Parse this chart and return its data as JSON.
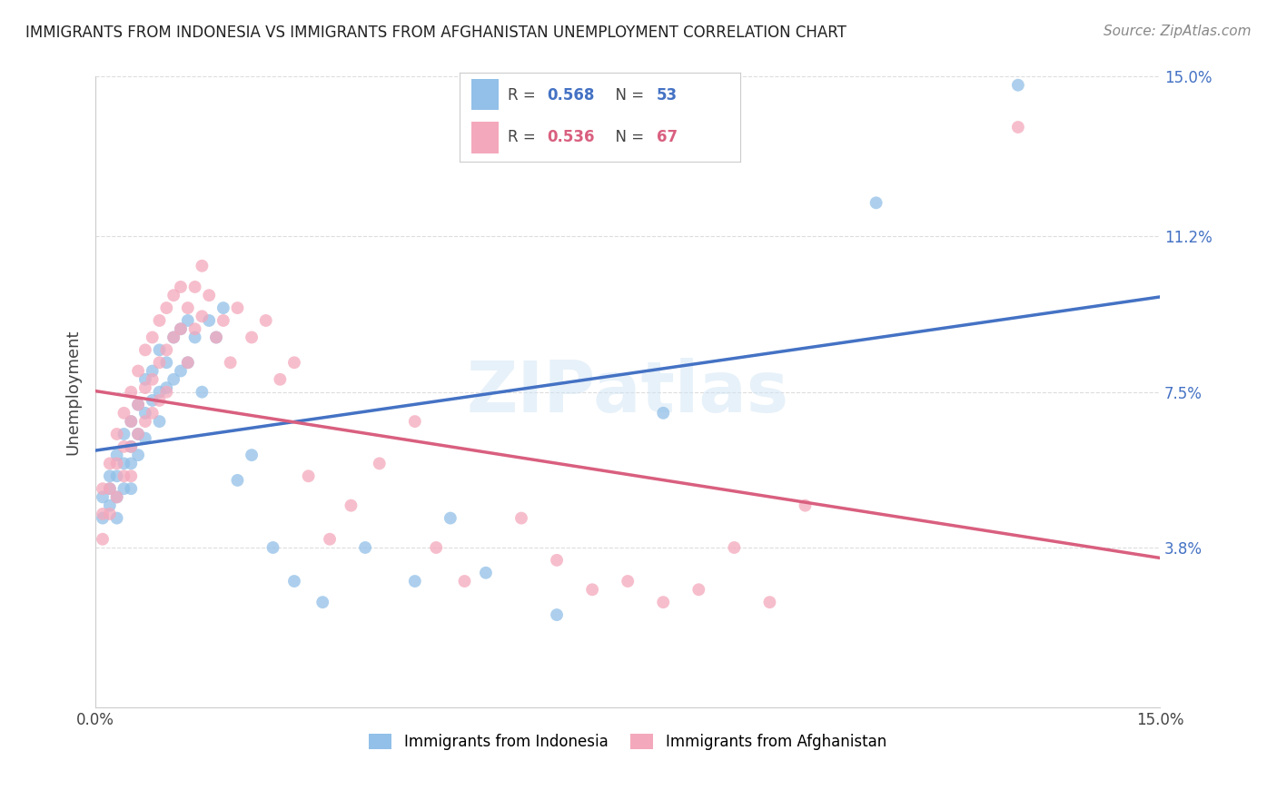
{
  "title": "IMMIGRANTS FROM INDONESIA VS IMMIGRANTS FROM AFGHANISTAN UNEMPLOYMENT CORRELATION CHART",
  "source": "Source: ZipAtlas.com",
  "ylabel": "Unemployment",
  "xlim": [
    0.0,
    0.15
  ],
  "ylim": [
    0.0,
    0.15
  ],
  "ytick_labels": [
    "3.8%",
    "7.5%",
    "11.2%",
    "15.0%"
  ],
  "ytick_positions": [
    0.038,
    0.075,
    0.112,
    0.15
  ],
  "xtick_positions": [
    0.0,
    0.025,
    0.05,
    0.075,
    0.1,
    0.125,
    0.15
  ],
  "indonesia_R": "0.568",
  "indonesia_N": "53",
  "afghanistan_R": "0.536",
  "afghanistan_N": "67",
  "indonesia_color": "#92C0E8",
  "afghanistan_color": "#F4A8BC",
  "indonesia_line_color": "#4472C4",
  "afghanistan_line_color": "#D95F7F",
  "watermark": "ZIPatlas",
  "background_color": "#FFFFFF",
  "grid_color": "#DDDDDD",
  "indonesia_x": [
    0.001,
    0.001,
    0.002,
    0.002,
    0.002,
    0.003,
    0.003,
    0.003,
    0.003,
    0.004,
    0.004,
    0.004,
    0.005,
    0.005,
    0.005,
    0.005,
    0.006,
    0.006,
    0.006,
    0.007,
    0.007,
    0.007,
    0.008,
    0.008,
    0.009,
    0.009,
    0.009,
    0.01,
    0.01,
    0.011,
    0.011,
    0.012,
    0.012,
    0.013,
    0.013,
    0.014,
    0.015,
    0.016,
    0.017,
    0.018,
    0.02,
    0.022,
    0.025,
    0.028,
    0.032,
    0.038,
    0.045,
    0.05,
    0.055,
    0.065,
    0.08,
    0.11,
    0.13
  ],
  "indonesia_y": [
    0.05,
    0.045,
    0.055,
    0.048,
    0.052,
    0.06,
    0.055,
    0.05,
    0.045,
    0.065,
    0.058,
    0.052,
    0.068,
    0.062,
    0.058,
    0.052,
    0.072,
    0.065,
    0.06,
    0.078,
    0.07,
    0.064,
    0.08,
    0.073,
    0.085,
    0.075,
    0.068,
    0.082,
    0.076,
    0.088,
    0.078,
    0.09,
    0.08,
    0.092,
    0.082,
    0.088,
    0.075,
    0.092,
    0.088,
    0.095,
    0.054,
    0.06,
    0.038,
    0.03,
    0.025,
    0.038,
    0.03,
    0.045,
    0.032,
    0.022,
    0.07,
    0.12,
    0.148
  ],
  "afghanistan_x": [
    0.001,
    0.001,
    0.001,
    0.002,
    0.002,
    0.002,
    0.003,
    0.003,
    0.003,
    0.004,
    0.004,
    0.004,
    0.005,
    0.005,
    0.005,
    0.005,
    0.006,
    0.006,
    0.006,
    0.007,
    0.007,
    0.007,
    0.008,
    0.008,
    0.008,
    0.009,
    0.009,
    0.009,
    0.01,
    0.01,
    0.01,
    0.011,
    0.011,
    0.012,
    0.012,
    0.013,
    0.013,
    0.014,
    0.014,
    0.015,
    0.015,
    0.016,
    0.017,
    0.018,
    0.019,
    0.02,
    0.022,
    0.024,
    0.026,
    0.028,
    0.03,
    0.033,
    0.036,
    0.04,
    0.045,
    0.048,
    0.052,
    0.06,
    0.065,
    0.07,
    0.075,
    0.08,
    0.085,
    0.09,
    0.095,
    0.1,
    0.13
  ],
  "afghanistan_y": [
    0.052,
    0.046,
    0.04,
    0.058,
    0.052,
    0.046,
    0.065,
    0.058,
    0.05,
    0.07,
    0.062,
    0.055,
    0.075,
    0.068,
    0.062,
    0.055,
    0.08,
    0.072,
    0.065,
    0.085,
    0.076,
    0.068,
    0.088,
    0.078,
    0.07,
    0.092,
    0.082,
    0.073,
    0.095,
    0.085,
    0.075,
    0.098,
    0.088,
    0.1,
    0.09,
    0.095,
    0.082,
    0.1,
    0.09,
    0.105,
    0.093,
    0.098,
    0.088,
    0.092,
    0.082,
    0.095,
    0.088,
    0.092,
    0.078,
    0.082,
    0.055,
    0.04,
    0.048,
    0.058,
    0.068,
    0.038,
    0.03,
    0.045,
    0.035,
    0.028,
    0.03,
    0.025,
    0.028,
    0.038,
    0.025,
    0.048,
    0.138
  ]
}
